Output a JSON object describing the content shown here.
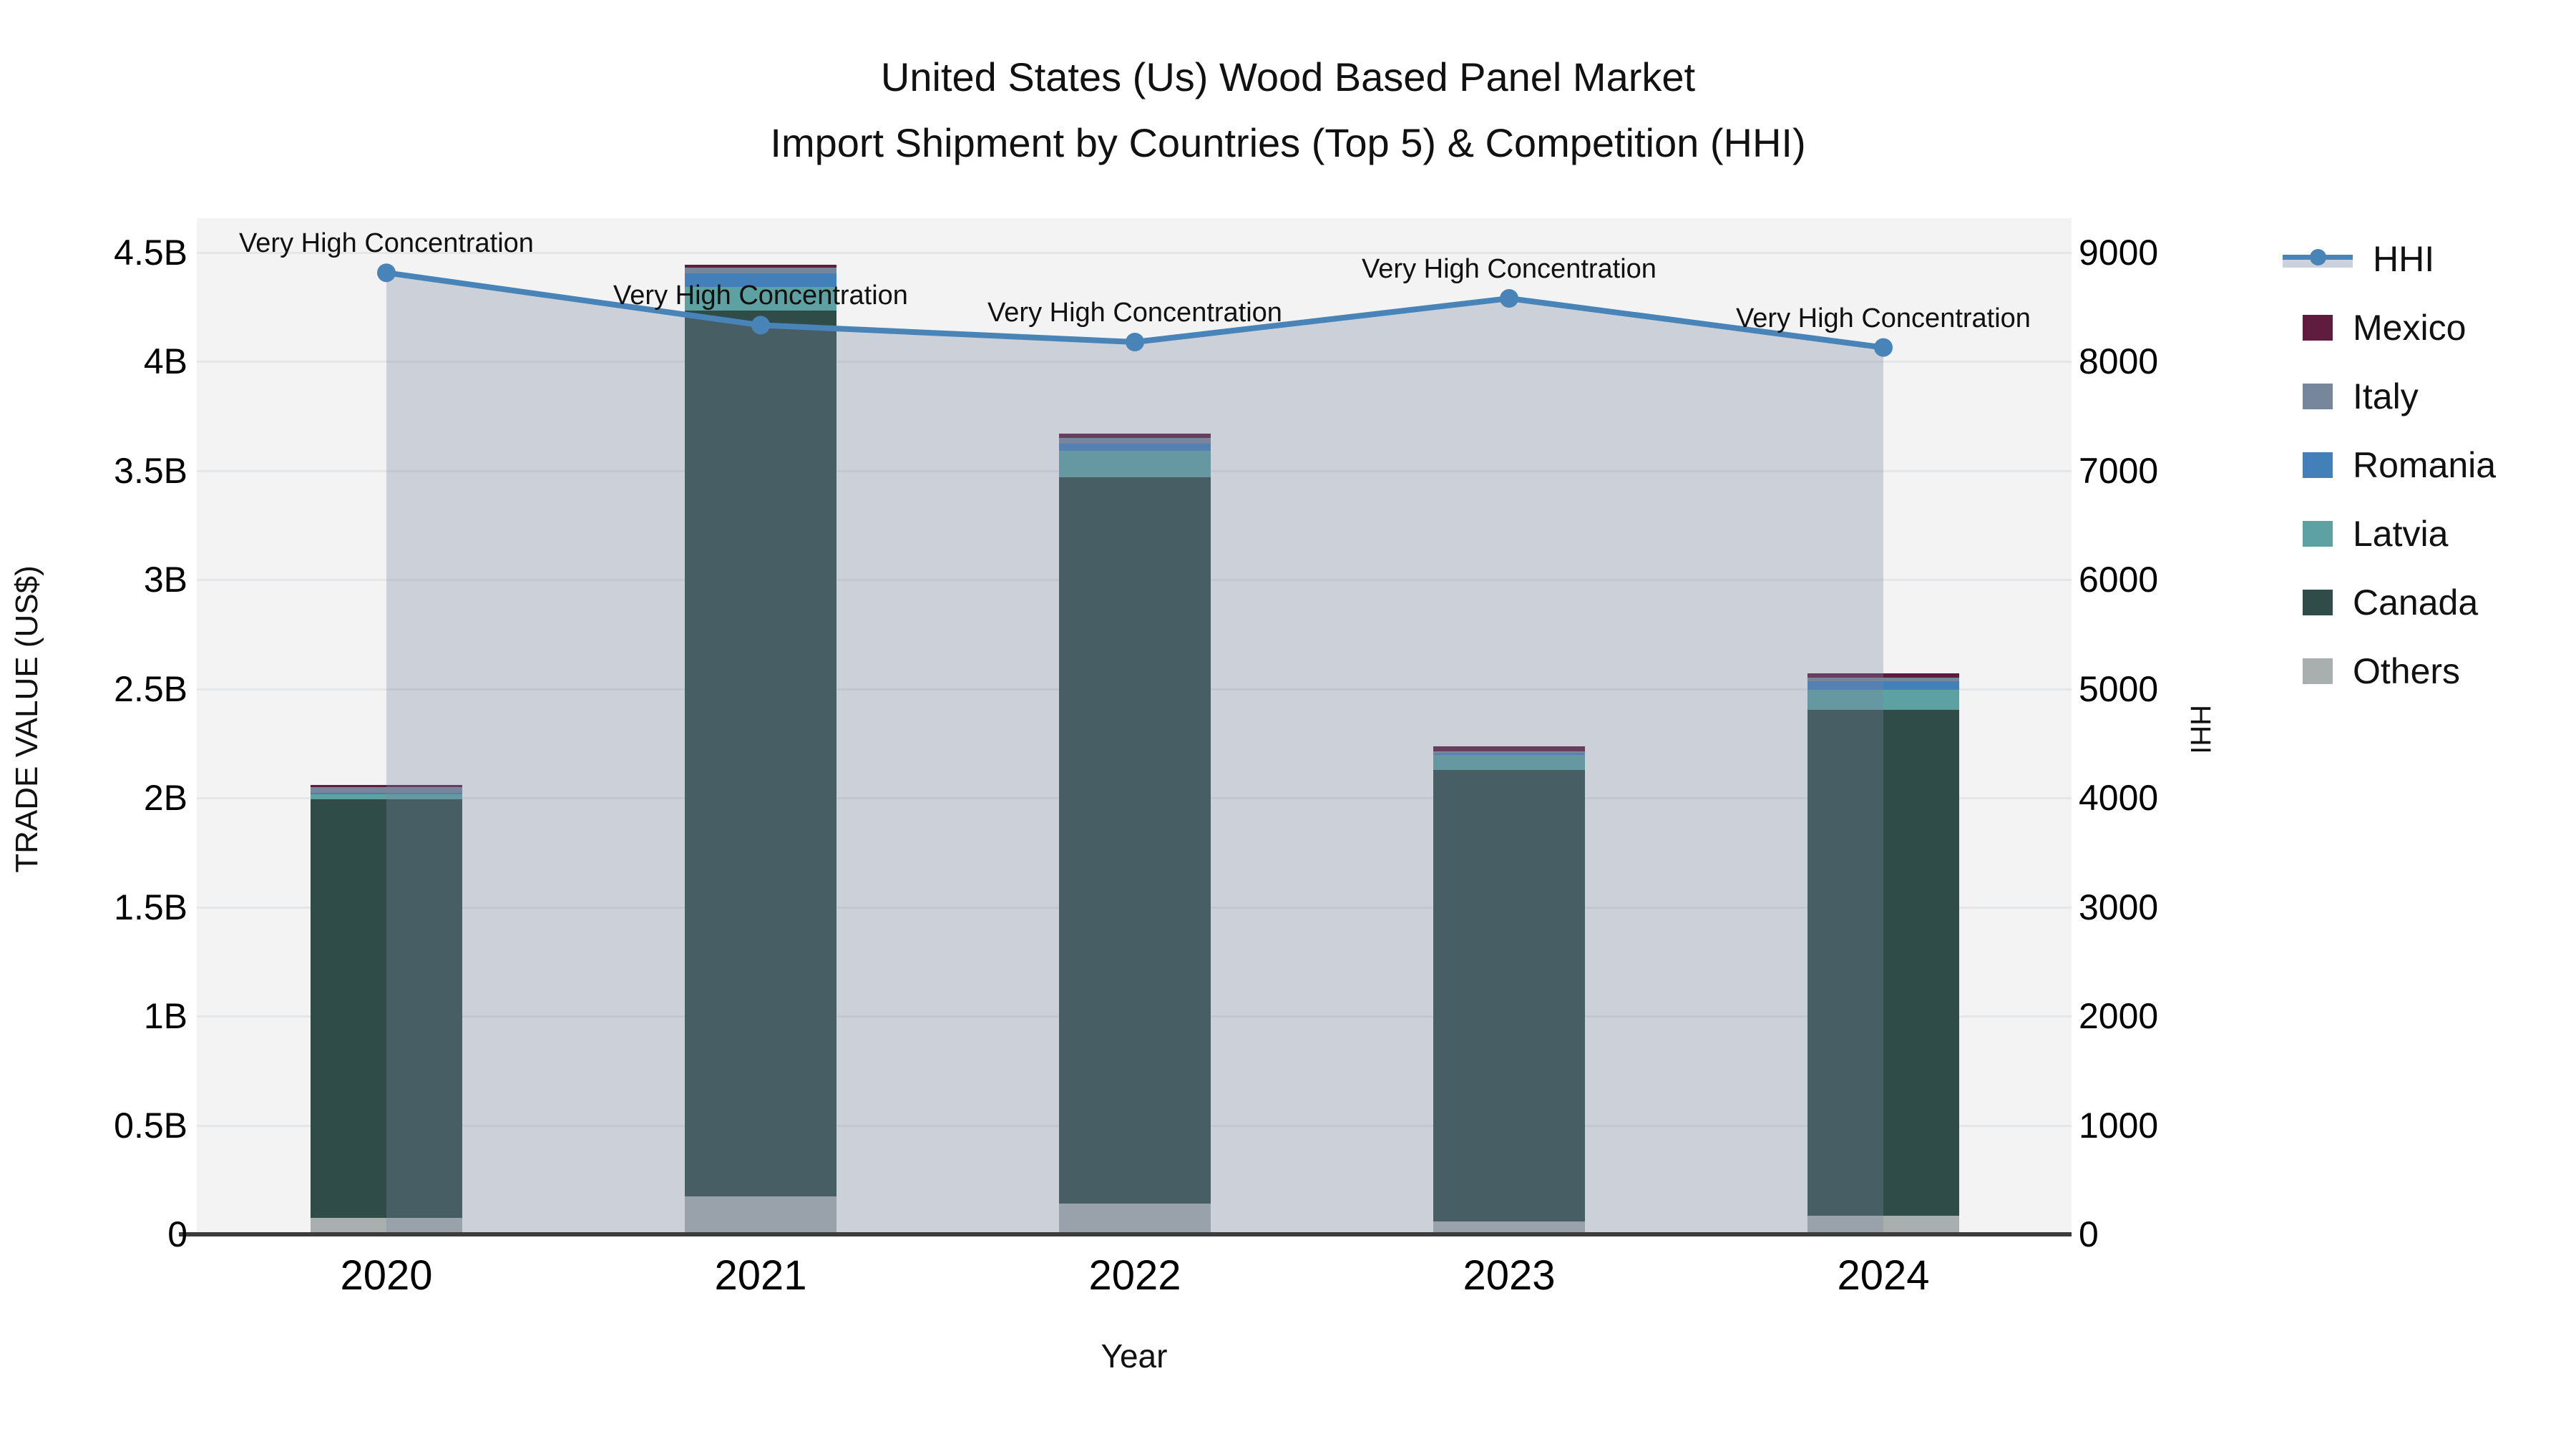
{
  "chart": {
    "title_line1": "United States (Us) Wood Based Panel Market",
    "title_line2": "Import Shipment by Countries (Top 5) & Competition (HHI)",
    "xlabel": "Year",
    "ylabel": "TRADE VALUE (US$)",
    "y2label": "HHI"
  },
  "chart_data": {
    "type": "bar",
    "subtype": "stacked bars (trade value, left axis) + line with markers (HHI, right axis) with area fill",
    "title": "United States (Us) Wood Based Panel Market",
    "subtitle": "Import Shipment by Countries (Top 5) & Competition (HHI)",
    "xlabel": "Year",
    "ylabel": "TRADE VALUE (US$)",
    "y2label": "HHI",
    "unit": "billions US$",
    "categories": [
      "2020",
      "2021",
      "2022",
      "2023",
      "2024"
    ],
    "stack_order_bottom_to_top": [
      "Others",
      "Canada",
      "Latvia",
      "Romania",
      "Italy",
      "Mexico"
    ],
    "series": [
      {
        "name": "Mexico",
        "color": "#601c3e",
        "values": [
          0.01,
          0.013,
          0.02,
          0.023,
          0.02
        ]
      },
      {
        "name": "Italy",
        "color": "#76879b",
        "values": [
          0.026,
          0.026,
          0.026,
          0.01,
          0.016
        ]
      },
      {
        "name": "Romania",
        "color": "#437fb8",
        "values": [
          0.007,
          0.062,
          0.033,
          0.007,
          0.039
        ]
      },
      {
        "name": "Latvia",
        "color": "#5ea1a3",
        "values": [
          0.023,
          0.108,
          0.121,
          0.066,
          0.092
        ]
      },
      {
        "name": "Canada",
        "color": "#2f4c48",
        "values": [
          1.92,
          4.06,
          3.33,
          2.07,
          2.32
        ]
      },
      {
        "name": "Others",
        "color": "#a9aeae",
        "values": [
          0.075,
          0.175,
          0.14,
          0.06,
          0.085
        ]
      }
    ],
    "bar_totals": [
      2.061,
      4.444,
      3.67,
      2.236,
      2.572
    ],
    "line_series": {
      "name": "HHI",
      "axis": "right",
      "values": [
        8815,
        8335,
        8180,
        8580,
        8130
      ],
      "color": "#4884b8",
      "marker": "circle",
      "area_fill": "rgba(121,135,163,0.32)"
    },
    "annotations": {
      "text": "Very High Concentration",
      "at_each_point": true
    },
    "y_axis": {
      "ticks": [
        "0",
        "0.5B",
        "1B",
        "1.5B",
        "2B",
        "2.5B",
        "3B",
        "3.5B",
        "4B",
        "4.5B"
      ],
      "values": [
        0,
        0.5,
        1,
        1.5,
        2,
        2.5,
        3,
        3.5,
        4,
        4.5
      ],
      "range": [
        0,
        4.66
      ],
      "grid": true
    },
    "y2_axis": {
      "ticks": [
        "0",
        "1000",
        "2000",
        "3000",
        "4000",
        "5000",
        "6000",
        "7000",
        "8000",
        "9000"
      ],
      "values": [
        0,
        1000,
        2000,
        3000,
        4000,
        5000,
        6000,
        7000,
        8000,
        9000
      ],
      "range": [
        0,
        9315
      ],
      "grid": false
    },
    "legend": {
      "position": "right",
      "entries": [
        "HHI",
        "Mexico",
        "Italy",
        "Romania",
        "Latvia",
        "Canada",
        "Others"
      ]
    },
    "plot_background": "#f3f3f4",
    "gridline_color": "#e5e6e8",
    "axisline_color": "#3c3c3c"
  }
}
